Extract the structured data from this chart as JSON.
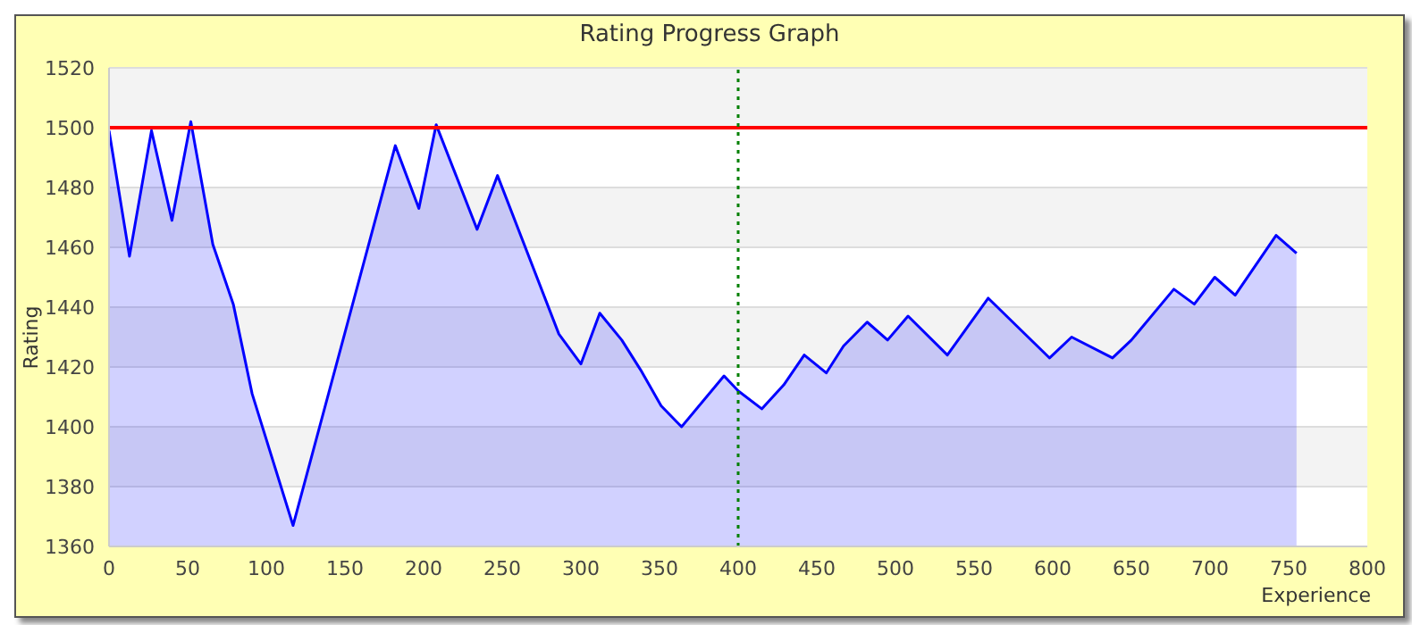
{
  "chart_data": {
    "type": "area",
    "title": "Rating Progress Graph",
    "xlabel": "Experience",
    "ylabel": "Rating",
    "x": [
      0,
      13,
      27,
      40,
      52,
      66,
      79,
      91,
      117,
      182,
      197,
      208,
      234,
      247,
      286,
      300,
      312,
      326,
      338,
      351,
      364,
      391,
      400,
      415,
      429,
      442,
      456,
      467,
      482,
      495,
      508,
      533,
      559,
      598,
      612,
      638,
      650,
      677,
      690,
      703,
      716,
      742,
      755
    ],
    "series": [
      {
        "color": "#0000ff",
        "values": [
          1499,
          1457,
          1499,
          1469,
          1502,
          1461,
          1441,
          1411,
          1367,
          1494,
          1473,
          1501,
          1466,
          1484,
          1431,
          1421,
          1438,
          1429,
          1419,
          1407,
          1400,
          1417,
          1412,
          1406,
          1414,
          1424,
          1418,
          1427,
          1435,
          1429,
          1437,
          1424,
          1443,
          1423,
          1430,
          1423,
          1429,
          1446,
          1441,
          1450,
          1444,
          1464,
          1458
        ]
      }
    ],
    "xlim": [
      0,
      800
    ],
    "xticks": [
      0,
      50,
      100,
      150,
      200,
      250,
      300,
      350,
      400,
      450,
      500,
      550,
      600,
      650,
      700,
      750,
      800
    ],
    "ylim": [
      1360,
      1520
    ],
    "yticks": [
      1360,
      1380,
      1400,
      1420,
      1440,
      1460,
      1480,
      1500,
      1520
    ],
    "grid": "y",
    "legend": false,
    "marker": "none",
    "line_style": "solid",
    "ref_lines": [
      {
        "axis": "y",
        "value": 1500,
        "color": "#ff0000",
        "line_style": "solid"
      },
      {
        "axis": "x",
        "value": 400,
        "color": "#008000",
        "line_style": "dotted"
      }
    ]
  }
}
